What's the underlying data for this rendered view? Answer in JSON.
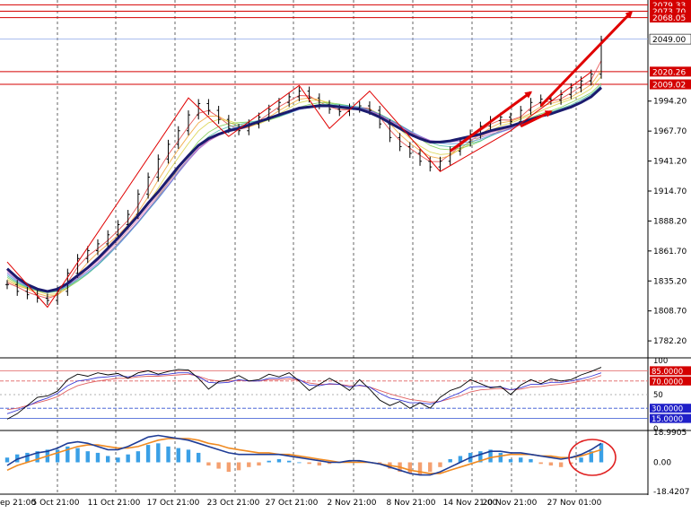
{
  "chart_data": {
    "type": "line",
    "instrument_note": "",
    "x_labels": [
      "ep 21:00",
      "5 Oct 21:00",
      "11 Oct 21:00",
      "17 Oct 21:00",
      "23 Oct 21:00",
      "27 Oct 21:00",
      "2 Nov 21:00",
      "8 Nov 21:00",
      "14 Nov 21:00",
      "20 Nov 21:00",
      "27 Nov 01:00"
    ],
    "price_panel": {
      "y_ticks": [
        "1994.20",
        "1967.70",
        "1941.20",
        "1914.70",
        "1888.20",
        "1861.70",
        "1835.20",
        "1808.70",
        "1782.20"
      ],
      "ylim": [
        1768,
        2082
      ],
      "level_tags": [
        {
          "label": "2079.33",
          "value": 2079.33,
          "color": "#d40000"
        },
        {
          "label": "2073.70",
          "value": 2073.7,
          "color": "#d40000"
        },
        {
          "label": "2068.05",
          "value": 2068.05,
          "color": "#d40000"
        },
        {
          "label": "2049.00",
          "value": 2049.0,
          "color": "#ffffff"
        },
        {
          "label": "2020.26",
          "value": 2020.26,
          "color": "#d40000"
        },
        {
          "label": "2009.02",
          "value": 2009.02,
          "color": "#d40000"
        }
      ],
      "close": [
        1832,
        1826,
        1823,
        1820,
        1818,
        1826,
        1842,
        1855,
        1862,
        1868,
        1876,
        1885,
        1894,
        1912,
        1927,
        1943,
        1956,
        1968,
        1982,
        1992,
        1986,
        1978,
        1970,
        1968,
        1974,
        1980,
        1987,
        1993,
        1998,
        2003,
        1997,
        1991,
        1987,
        1985,
        1988,
        1990,
        1986,
        1974,
        1962,
        1954,
        1948,
        1941,
        1936,
        1941,
        1950,
        1958,
        1965,
        1972,
        1977,
        1980,
        1976,
        1986,
        1993,
        1996,
        1995,
        2000,
        2006,
        2012,
        2018,
        2048
      ],
      "ma_slow": [
        1846,
        1838,
        1832,
        1828,
        1826,
        1828,
        1833,
        1840,
        1847,
        1855,
        1864,
        1873,
        1883,
        1893,
        1904,
        1914,
        1925,
        1936,
        1946,
        1955,
        1961,
        1965,
        1968,
        1970,
        1973,
        1976,
        1979,
        1982,
        1985,
        1988,
        1989,
        1990,
        1990,
        1989,
        1988,
        1987,
        1984,
        1980,
        1975,
        1970,
        1965,
        1961,
        1958,
        1958,
        1959,
        1961,
        1963,
        1965,
        1968,
        1970,
        1972,
        1975,
        1978,
        1981,
        1983,
        1986,
        1989,
        1993,
        1998,
        2006
      ],
      "zigzag": [
        {
          "i": 0,
          "v": 1852
        },
        {
          "i": 4,
          "v": 1812
        },
        {
          "i": 18,
          "v": 1997
        },
        {
          "i": 22,
          "v": 1963
        },
        {
          "i": 29,
          "v": 2008
        },
        {
          "i": 32,
          "v": 1970
        },
        {
          "i": 36,
          "v": 2003
        },
        {
          "i": 43,
          "v": 1932
        },
        {
          "i": 50,
          "v": 1968
        },
        {
          "i": 58,
          "v": 2020
        }
      ],
      "arrows": [
        {
          "from": {
            "i": 44,
            "v": 1950
          },
          "to": {
            "i": 52,
            "v": 2002
          }
        },
        {
          "from": {
            "i": 51,
            "v": 1972
          },
          "to": {
            "i": 54,
            "v": 1985
          }
        },
        {
          "from": {
            "i": 53,
            "v": 1990
          },
          "to": {
            "i": 62,
            "v": 2073
          }
        }
      ]
    },
    "rsi_panel": {
      "y_ticks": [
        "100",
        "85.0000",
        "70.0000",
        "50",
        "30.0000",
        "15.0000",
        "0"
      ],
      "levels": [
        85,
        70,
        50,
        30,
        15
      ],
      "series_a": [
        14,
        22,
        34,
        46,
        48,
        55,
        72,
        80,
        77,
        82,
        79,
        81,
        74,
        82,
        85,
        80,
        84,
        87,
        86,
        74,
        58,
        69,
        72,
        78,
        70,
        72,
        80,
        76,
        82,
        70,
        56,
        65,
        74,
        66,
        56,
        72,
        58,
        42,
        34,
        40,
        30,
        38,
        30,
        46,
        56,
        61,
        72,
        66,
        60,
        62,
        50,
        64,
        72,
        66,
        73,
        70,
        72,
        79,
        84,
        90
      ],
      "series_b": [
        22,
        27,
        33,
        40,
        45,
        52,
        63,
        70,
        72,
        75,
        76,
        78,
        76,
        78,
        80,
        79,
        80,
        82,
        82,
        76,
        68,
        67,
        68,
        72,
        70,
        70,
        74,
        74,
        76,
        72,
        64,
        63,
        66,
        65,
        61,
        64,
        61,
        52,
        45,
        42,
        38,
        38,
        36,
        40,
        47,
        53,
        61,
        62,
        61,
        61,
        57,
        60,
        65,
        65,
        68,
        68,
        70,
        73,
        77,
        82
      ],
      "series_c": [
        28,
        30,
        34,
        38,
        42,
        47,
        56,
        63,
        67,
        70,
        72,
        74,
        74,
        76,
        77,
        77,
        78,
        79,
        80,
        77,
        72,
        70,
        70,
        71,
        70,
        70,
        72,
        72,
        73,
        71,
        67,
        65,
        65,
        65,
        63,
        63,
        61,
        56,
        51,
        47,
        43,
        41,
        39,
        40,
        44,
        48,
        54,
        57,
        58,
        59,
        57,
        58,
        61,
        62,
        64,
        65,
        67,
        70,
        73,
        78
      ]
    },
    "macd_panel": {
      "y_ticks": [
        "18.9905",
        "0.00",
        "-18.4207"
      ],
      "ylim": [
        -18.4207,
        18.9905
      ],
      "histogram": [
        3,
        5,
        6,
        7,
        8,
        8,
        10,
        9,
        7,
        6,
        4,
        3,
        5,
        7,
        11,
        12,
        10,
        9,
        8,
        6,
        -2,
        -4,
        -6,
        -5,
        -3,
        -2,
        1,
        2,
        1,
        0,
        -1,
        -2,
        -1,
        0,
        1,
        1,
        0,
        -1,
        -4,
        -6,
        -7,
        -8,
        -6,
        -3,
        2,
        4,
        6,
        7,
        8,
        6,
        2,
        3,
        2,
        -1,
        -2,
        -3,
        -1,
        3,
        7,
        12
      ],
      "macd_line": [
        -2,
        2,
        4,
        6,
        7,
        9,
        12,
        13,
        12,
        10,
        8,
        8,
        10,
        13,
        16,
        17,
        16,
        15,
        14,
        12,
        10,
        8,
        6,
        5,
        5,
        5,
        5,
        5,
        4,
        3,
        2,
        1,
        0,
        0,
        1,
        1,
        0,
        -1,
        -3,
        -5,
        -7,
        -8,
        -8,
        -6,
        -3,
        0,
        3,
        5,
        7,
        7,
        6,
        6,
        5,
        4,
        3,
        2,
        3,
        5,
        8,
        12
      ],
      "signal_line": [
        -5,
        -2,
        0,
        2,
        4,
        6,
        8,
        10,
        11,
        11,
        10,
        9,
        9,
        10,
        12,
        14,
        15,
        15,
        15,
        14,
        12,
        11,
        9,
        8,
        7,
        6,
        6,
        5,
        5,
        4,
        3,
        2,
        1,
        0,
        0,
        0,
        0,
        -1,
        -2,
        -3,
        -5,
        -6,
        -7,
        -7,
        -5,
        -3,
        -1,
        1,
        3,
        4,
        5,
        5,
        5,
        4,
        4,
        3,
        3,
        4,
        6,
        8
      ]
    },
    "colors": {
      "price_bar": "#000000",
      "ma_slow": "#1b1b6e",
      "zigzag": "#e00000",
      "level_line": "#d40000",
      "current_line": "#8fa8e8",
      "rsi_a": "#000000",
      "rsi_b": "#3b3bd6",
      "rsi_c": "#e06060",
      "macd_hist_pos": "#3aa0e6",
      "macd_hist_neg": "#f4a070",
      "macd_line": "#1e3c96",
      "signal_line": "#f08a20",
      "highlight_circle": "#e02020"
    }
  }
}
